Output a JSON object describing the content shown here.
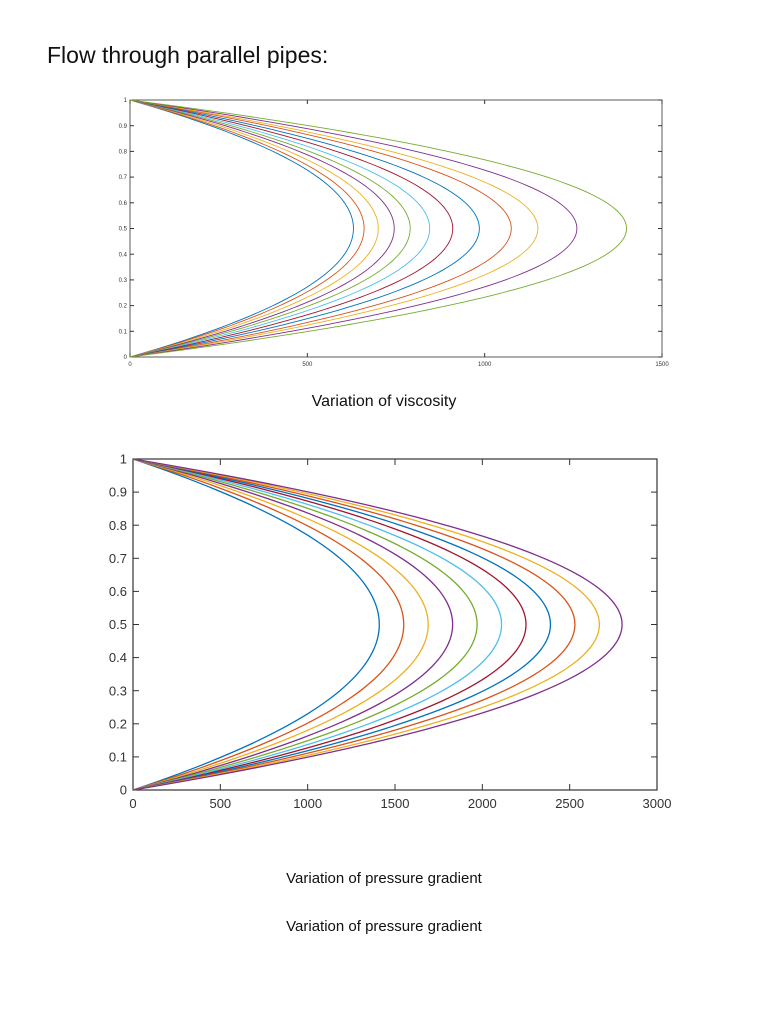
{
  "page": {
    "heading": "Flow through parallel pipes:"
  },
  "captions": {
    "first": "Variation of viscosity",
    "second": "Variation of pressure gradient",
    "third": "Variation of pressure gradient"
  },
  "colors": {
    "axis": "#333333",
    "series": [
      "#0072BD",
      "#D95319",
      "#EDB120",
      "#7E2F8E",
      "#77AC30",
      "#4DBEEE",
      "#A2142F"
    ]
  },
  "chart_data": [
    {
      "type": "line",
      "title": "",
      "xlabel": "",
      "ylabel": "",
      "xlim": [
        0,
        1500
      ],
      "ylim": [
        0,
        1
      ],
      "x_ticks": [
        "0",
        "500",
        "1000",
        "1500"
      ],
      "y_ticks": [
        "0",
        "0.1",
        "0.2",
        "0.3",
        "0.4",
        "0.5",
        "0.6",
        "0.7",
        "0.8",
        "0.9",
        "1"
      ],
      "grid": false,
      "curve_shape": "parabolic velocity profile u = 4*umax*y*(1-y)",
      "series": [
        {
          "peak_x": 630
        },
        {
          "peak_x": 660
        },
        {
          "peak_x": 700
        },
        {
          "peak_x": 745
        },
        {
          "peak_x": 790
        },
        {
          "peak_x": 845
        },
        {
          "peak_x": 910
        },
        {
          "peak_x": 985
        },
        {
          "peak_x": 1075
        },
        {
          "peak_x": 1150
        },
        {
          "peak_x": 1260
        },
        {
          "peak_x": 1400
        }
      ]
    },
    {
      "type": "line",
      "title": "",
      "xlabel": "",
      "ylabel": "",
      "xlim": [
        0,
        3000
      ],
      "ylim": [
        0,
        1
      ],
      "x_ticks": [
        "0",
        "500",
        "1000",
        "1500",
        "2000",
        "2500",
        "3000"
      ],
      "y_ticks": [
        "0",
        "0.1",
        "0.2",
        "0.3",
        "0.4",
        "0.5",
        "0.6",
        "0.7",
        "0.8",
        "0.9",
        "1"
      ],
      "grid": false,
      "curve_shape": "parabolic velocity profile u = 4*umax*y*(1-y)",
      "series": [
        {
          "peak_x": 1410
        },
        {
          "peak_x": 1550
        },
        {
          "peak_x": 1690
        },
        {
          "peak_x": 1830
        },
        {
          "peak_x": 1970
        },
        {
          "peak_x": 2110
        },
        {
          "peak_x": 2250
        },
        {
          "peak_x": 2390
        },
        {
          "peak_x": 2530
        },
        {
          "peak_x": 2670
        },
        {
          "peak_x": 2800
        }
      ]
    }
  ]
}
